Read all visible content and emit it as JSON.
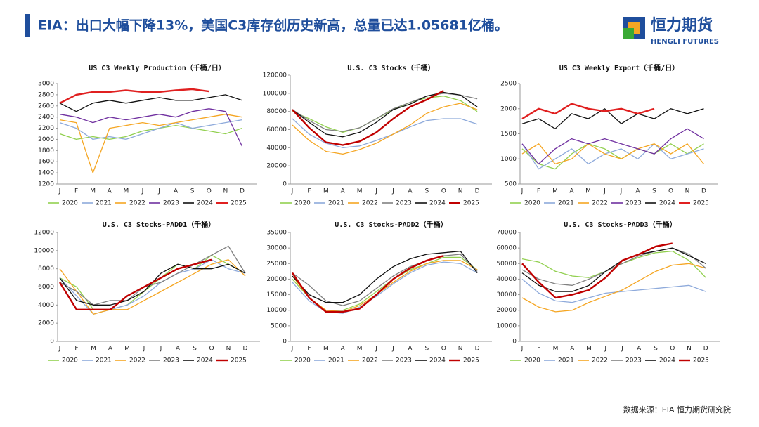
{
  "header": {
    "title": "EIA：出口大幅下降13%，美国C3库存创历史新高，总量已达1.05681亿桶。",
    "logo_name": "恒力期货",
    "logo_en": "HENGLI FUTURES"
  },
  "footer": {
    "source": "数据来源：EIA 恒力期货研究院"
  },
  "chart_data": [
    {
      "type": "line",
      "title": "US C3 Weekly Production（千桶/日）",
      "categories": [
        "J",
        "F",
        "M",
        "A",
        "M",
        "J",
        "J",
        "A",
        "S",
        "O",
        "N",
        "D"
      ],
      "ylim": [
        1200,
        3000
      ],
      "yticks": [
        1200,
        1400,
        1600,
        1800,
        2000,
        2200,
        2400,
        2600,
        2800,
        3000
      ],
      "series": [
        {
          "name": "2020",
          "color": "#92d050",
          "values": [
            2100,
            2000,
            2050,
            2000,
            2050,
            2150,
            2200,
            2250,
            2200,
            2150,
            2100,
            2200
          ]
        },
        {
          "name": "2021",
          "color": "#8eaadb",
          "values": [
            2300,
            2200,
            2000,
            2050,
            2000,
            2100,
            2200,
            2300,
            2200,
            2250,
            2300,
            2350
          ]
        },
        {
          "name": "2022",
          "color": "#f5a623",
          "values": [
            2350,
            2300,
            1400,
            2200,
            2250,
            2300,
            2250,
            2300,
            2350,
            2400,
            2450,
            2400
          ]
        },
        {
          "name": "2023",
          "color": "#7030a0",
          "values": [
            2450,
            2400,
            2300,
            2400,
            2350,
            2400,
            2450,
            2400,
            2500,
            2550,
            2500,
            1880
          ]
        },
        {
          "name": "2024",
          "color": "#111111",
          "values": [
            2650,
            2500,
            2650,
            2700,
            2650,
            2700,
            2750,
            2700,
            2700,
            2750,
            2800,
            2700
          ]
        },
        {
          "name": "2025",
          "color": "#e02020",
          "values": [
            2650,
            2800,
            2850,
            2850,
            2880,
            2850,
            2850,
            2880,
            2900,
            2860,
            null,
            null
          ]
        }
      ]
    },
    {
      "type": "line",
      "title": "U.S. C3 Stocks（千桶）",
      "categories": [
        "J",
        "F",
        "M",
        "A",
        "M",
        "J",
        "J",
        "A",
        "S",
        "O",
        "N",
        "D"
      ],
      "ylim": [
        0,
        120000
      ],
      "yticks": [
        0,
        20000,
        40000,
        60000,
        80000,
        100000,
        120000
      ],
      "series": [
        {
          "name": "2020",
          "color": "#92d050",
          "values": [
            80000,
            72000,
            63000,
            57000,
            62000,
            72000,
            82000,
            90000,
            95000,
            97000,
            92000,
            80000
          ]
        },
        {
          "name": "2021",
          "color": "#8eaadb",
          "values": [
            72000,
            55000,
            45000,
            40000,
            42000,
            48000,
            55000,
            63000,
            70000,
            72000,
            72000,
            66000
          ]
        },
        {
          "name": "2022",
          "color": "#f5a623",
          "values": [
            65000,
            48000,
            36000,
            33000,
            38000,
            45000,
            55000,
            65000,
            78000,
            85000,
            89000,
            82000
          ]
        },
        {
          "name": "2023",
          "color": "#808080",
          "values": [
            82000,
            70000,
            60000,
            58000,
            62000,
            72000,
            83000,
            90000,
            97000,
            100000,
            98000,
            94000
          ]
        },
        {
          "name": "2024",
          "color": "#111111",
          "values": [
            82000,
            68000,
            55000,
            52000,
            57000,
            68000,
            82000,
            88000,
            97000,
            101000,
            98000,
            85000
          ]
        },
        {
          "name": "2025",
          "color": "#c00000",
          "values": [
            82000,
            62000,
            46000,
            43000,
            47000,
            57000,
            72000,
            85000,
            93000,
            103000,
            null,
            null
          ]
        }
      ]
    },
    {
      "type": "line",
      "title": "US C3 Weekly Export（千桶/日）",
      "categories": [
        "J",
        "F",
        "M",
        "A",
        "M",
        "J",
        "J",
        "A",
        "S",
        "O",
        "N",
        "D"
      ],
      "ylim": [
        500,
        2500
      ],
      "yticks": [
        500,
        1000,
        1500,
        2000,
        2500
      ],
      "series": [
        {
          "name": "2020",
          "color": "#92d050",
          "values": [
            1200,
            900,
            800,
            1100,
            1300,
            1200,
            1000,
            1200,
            1100,
            1300,
            1100,
            1300
          ]
        },
        {
          "name": "2021",
          "color": "#8eaadb",
          "values": [
            1300,
            800,
            1000,
            1200,
            900,
            1100,
            1200,
            1000,
            1300,
            1000,
            1100,
            1200
          ]
        },
        {
          "name": "2022",
          "color": "#f5a623",
          "values": [
            1100,
            1300,
            900,
            1000,
            1300,
            1100,
            1000,
            1200,
            1300,
            1100,
            1300,
            900
          ]
        },
        {
          "name": "2023",
          "color": "#7030a0",
          "values": [
            1300,
            900,
            1200,
            1400,
            1300,
            1400,
            1300,
            1200,
            1100,
            1400,
            1600,
            1400
          ]
        },
        {
          "name": "2024",
          "color": "#111111",
          "values": [
            1700,
            1800,
            1600,
            1900,
            1800,
            2000,
            1700,
            1900,
            1800,
            2000,
            1900,
            2000
          ]
        },
        {
          "name": "2025",
          "color": "#e02020",
          "values": [
            1800,
            2000,
            1900,
            2100,
            2000,
            1950,
            2000,
            1900,
            2000,
            null,
            null,
            null
          ]
        }
      ]
    },
    {
      "type": "line",
      "title": "U.S. C3 Stocks-PADD1（千桶）",
      "categories": [
        "J",
        "F",
        "M",
        "A",
        "M",
        "J",
        "J",
        "A",
        "S",
        "O",
        "N",
        "D"
      ],
      "ylim": [
        0,
        12000
      ],
      "yticks": [
        0,
        2000,
        4000,
        6000,
        8000,
        10000,
        12000
      ],
      "series": [
        {
          "name": "2020",
          "color": "#92d050",
          "values": [
            7000,
            6000,
            3500,
            3500,
            4000,
            5500,
            7000,
            8500,
            8000,
            9500,
            8500,
            7500
          ]
        },
        {
          "name": "2021",
          "color": "#8eaadb",
          "values": [
            7000,
            5000,
            3000,
            3500,
            4000,
            5000,
            6500,
            7500,
            8000,
            9000,
            8000,
            7500
          ]
        },
        {
          "name": "2022",
          "color": "#f5a623",
          "values": [
            8000,
            5500,
            3000,
            3500,
            3500,
            4500,
            5500,
            6500,
            7500,
            8500,
            9000,
            7200
          ]
        },
        {
          "name": "2023",
          "color": "#808080",
          "values": [
            6500,
            5500,
            4000,
            4500,
            4500,
            6000,
            6500,
            7500,
            8500,
            9500,
            10500,
            7500
          ]
        },
        {
          "name": "2024",
          "color": "#111111",
          "values": [
            7000,
            4500,
            4000,
            4000,
            4500,
            5500,
            7500,
            8500,
            8000,
            8000,
            8500,
            7500
          ]
        },
        {
          "name": "2025",
          "color": "#c00000",
          "values": [
            6500,
            3500,
            3500,
            3500,
            5000,
            6000,
            7000,
            8000,
            8500,
            9000,
            null,
            null
          ]
        }
      ]
    },
    {
      "type": "line",
      "title": "U.S. C3 Stocks-PADD2（千桶）",
      "categories": [
        "J",
        "F",
        "M",
        "A",
        "M",
        "J",
        "J",
        "A",
        "S",
        "O",
        "N",
        "D"
      ],
      "ylim": [
        0,
        35000
      ],
      "yticks": [
        0,
        5000,
        10000,
        15000,
        20000,
        25000,
        30000,
        35000
      ],
      "series": [
        {
          "name": "2020",
          "color": "#92d050",
          "values": [
            20000,
            14000,
            10000,
            10000,
            12000,
            16000,
            20000,
            23000,
            25000,
            27000,
            27000,
            23000
          ]
        },
        {
          "name": "2021",
          "color": "#8eaadb",
          "values": [
            19000,
            13000,
            9500,
            9000,
            11000,
            14500,
            18500,
            22000,
            24500,
            25500,
            25000,
            22000
          ]
        },
        {
          "name": "2022",
          "color": "#f5a623",
          "values": [
            21000,
            14000,
            10000,
            9500,
            11500,
            15000,
            19000,
            22500,
            25000,
            26000,
            26000,
            23000
          ]
        },
        {
          "name": "2023",
          "color": "#808080",
          "values": [
            22000,
            18000,
            13000,
            11500,
            13000,
            17000,
            21000,
            24000,
            26000,
            27500,
            28000,
            22500
          ]
        },
        {
          "name": "2024",
          "color": "#111111",
          "values": [
            21000,
            15000,
            12500,
            12500,
            15000,
            20000,
            24000,
            26500,
            28000,
            28500,
            29000,
            22000
          ]
        },
        {
          "name": "2025",
          "color": "#c00000",
          "values": [
            22000,
            14000,
            9500,
            9500,
            10500,
            15000,
            20000,
            23500,
            26000,
            27500,
            null,
            null
          ]
        }
      ]
    },
    {
      "type": "line",
      "title": "U.S. C3 Stocks-PADD3（千桶）",
      "categories": [
        "J",
        "F",
        "M",
        "A",
        "M",
        "J",
        "J",
        "A",
        "S",
        "O",
        "N",
        "D"
      ],
      "ylim": [
        0,
        70000
      ],
      "yticks": [
        0,
        10000,
        20000,
        30000,
        40000,
        50000,
        60000,
        70000
      ],
      "series": [
        {
          "name": "2020",
          "color": "#92d050",
          "values": [
            53000,
            51000,
            45000,
            42000,
            41000,
            45000,
            50000,
            54000,
            57000,
            58000,
            52000,
            41000
          ]
        },
        {
          "name": "2021",
          "color": "#8eaadb",
          "values": [
            40000,
            31000,
            26000,
            25000,
            28000,
            31000,
            32000,
            33000,
            34000,
            35000,
            36000,
            32000
          ]
        },
        {
          "name": "2022",
          "color": "#f5a623",
          "values": [
            28000,
            22000,
            19000,
            20000,
            25000,
            29000,
            33000,
            39000,
            45000,
            49000,
            50000,
            47000
          ]
        },
        {
          "name": "2023",
          "color": "#808080",
          "values": [
            46000,
            40000,
            37000,
            36000,
            40000,
            45000,
            50000,
            55000,
            58000,
            60000,
            56000,
            47000
          ]
        },
        {
          "name": "2024",
          "color": "#111111",
          "values": [
            44000,
            36000,
            32000,
            32000,
            36000,
            45000,
            52000,
            56000,
            58000,
            60000,
            55000,
            50000
          ]
        },
        {
          "name": "2025",
          "color": "#c00000",
          "values": [
            50000,
            38000,
            28000,
            30000,
            33000,
            41000,
            52000,
            56000,
            61000,
            63000,
            null,
            null
          ]
        }
      ]
    }
  ]
}
